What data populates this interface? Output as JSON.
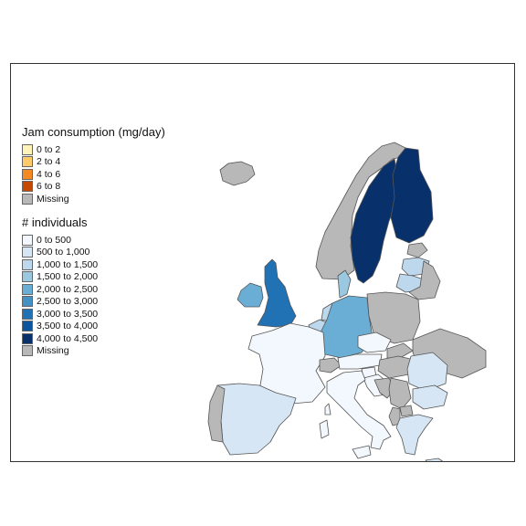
{
  "legends": {
    "jam": {
      "title": "Jam consumption (mg/day)",
      "items": [
        {
          "label": "0 to 2",
          "color": "#fff3b8"
        },
        {
          "label": "2 to 4",
          "color": "#fdcb6a"
        },
        {
          "label": "4 to 6",
          "color": "#f58a23"
        },
        {
          "label": "6 to 8",
          "color": "#c44905"
        },
        {
          "label": "Missing",
          "color": "#b8b8b8"
        }
      ]
    },
    "individuals": {
      "title": "# individuals",
      "items": [
        {
          "label": "0 to 500",
          "color": "#f2f8fd"
        },
        {
          "label": "500 to 1,000",
          "color": "#d6e6f4"
        },
        {
          "label": "1,000 to 1,500",
          "color": "#bdd7ec"
        },
        {
          "label": "1,500 to 2,000",
          "color": "#9ac8e0"
        },
        {
          "label": "2,000 to 2,500",
          "color": "#6aaed6"
        },
        {
          "label": "2,500 to 3,000",
          "color": "#4292c6"
        },
        {
          "label": "3,000 to 3,500",
          "color": "#2171b5"
        },
        {
          "label": "3,500 to 4,000",
          "color": "#0b559f"
        },
        {
          "label": "4,000 to 4,500",
          "color": "#08306b"
        },
        {
          "label": "Missing",
          "color": "#b8b8b8"
        }
      ]
    }
  },
  "countries": [
    {
      "name": "Iceland",
      "class": "Missing"
    },
    {
      "name": "Norway",
      "class": "Missing"
    },
    {
      "name": "Sweden",
      "class": "4,000 to 4,500"
    },
    {
      "name": "Finland",
      "class": "4,000 to 4,500"
    },
    {
      "name": "Estonia",
      "class": "Missing"
    },
    {
      "name": "Latvia",
      "class": "1,000 to 1,500"
    },
    {
      "name": "Lithuania",
      "class": "1,000 to 1,500"
    },
    {
      "name": "Belarus",
      "class": "Missing"
    },
    {
      "name": "United Kingdom",
      "class": "3,000 to 3,500"
    },
    {
      "name": "Ireland",
      "class": "2,000 to 2,500"
    },
    {
      "name": "Denmark",
      "class": "1,500 to 2,000"
    },
    {
      "name": "Netherlands",
      "class": "1,000 to 1,500"
    },
    {
      "name": "Belgium",
      "class": "1,000 to 1,500"
    },
    {
      "name": "Germany",
      "class": "2,000 to 2,500"
    },
    {
      "name": "Poland",
      "class": "Missing"
    },
    {
      "name": "France",
      "class": "0 to 500"
    },
    {
      "name": "Switzerland",
      "class": "Missing"
    },
    {
      "name": "Czechia",
      "class": "0 to 500"
    },
    {
      "name": "Slovakia",
      "class": "Missing"
    },
    {
      "name": "Austria",
      "class": "0 to 500"
    },
    {
      "name": "Hungary",
      "class": "Missing"
    },
    {
      "name": "Ukraine",
      "class": "Missing"
    },
    {
      "name": "Romania",
      "class": "500 to 1,000"
    },
    {
      "name": "Slovenia",
      "class": "0 to 500"
    },
    {
      "name": "Croatia",
      "class": "0 to 500"
    },
    {
      "name": "Bosnia and Herzegovina",
      "class": "Missing"
    },
    {
      "name": "Serbia",
      "class": "Missing"
    },
    {
      "name": "Bulgaria",
      "class": "500 to 1,000"
    },
    {
      "name": "North Macedonia",
      "class": "Missing"
    },
    {
      "name": "Albania",
      "class": "Missing"
    },
    {
      "name": "Greece",
      "class": "500 to 1,000"
    },
    {
      "name": "Italy",
      "class": "0 to 500"
    },
    {
      "name": "Spain",
      "class": "500 to 1,000"
    },
    {
      "name": "Portugal",
      "class": "Missing"
    }
  ]
}
